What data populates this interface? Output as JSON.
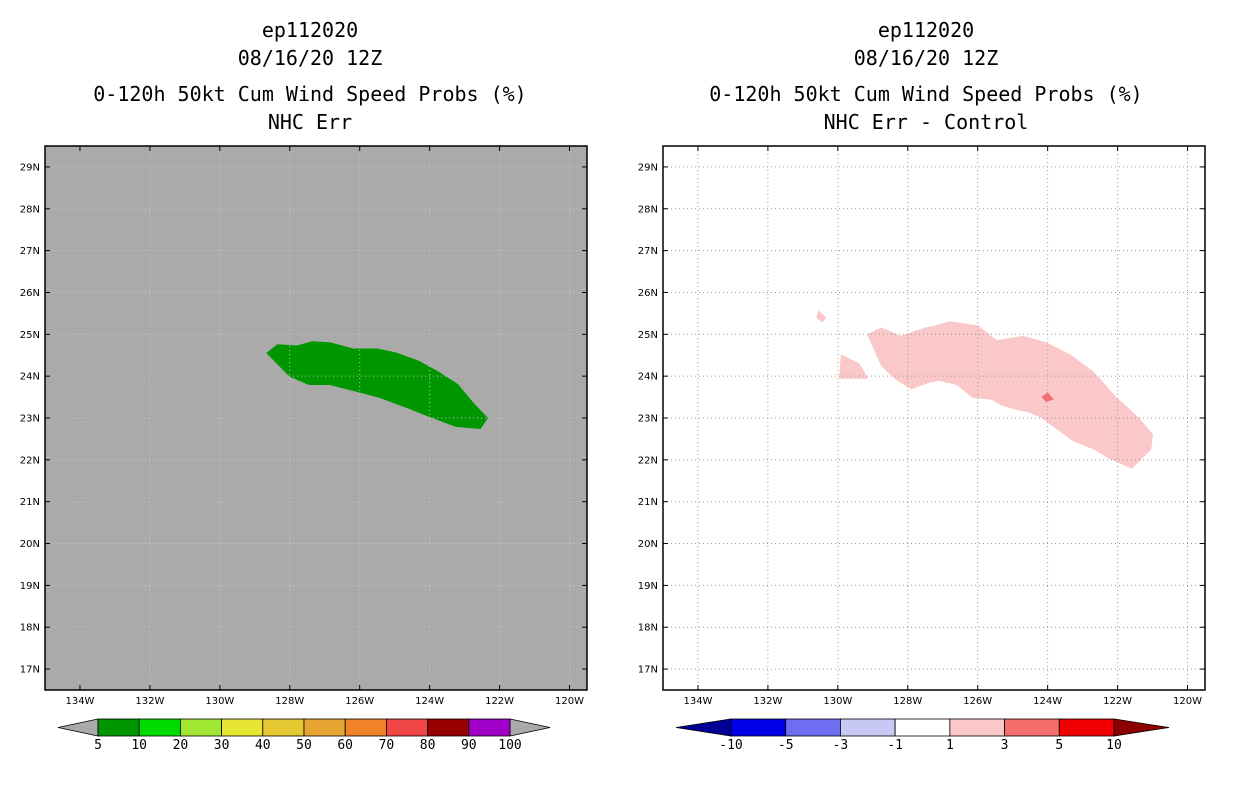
{
  "panels": [
    {
      "title_line1": "ep112020",
      "title_line2": "08/16/20 12Z",
      "title_line3": "0-120h 50kt Cum Wind Speed Probs (%)",
      "title_line4": "NHC Err"
    },
    {
      "title_line1": "ep112020",
      "title_line2": "08/16/20 12Z",
      "title_line3": "0-120h 50kt Cum Wind Speed Probs (%)",
      "title_line4": "NHC Err - Control"
    }
  ],
  "chart_data": [
    {
      "type": "map-contour",
      "title": "0-120h 50kt Cum Wind Speed Probs (%) — NHC Err",
      "background_color": "#aaaaaa",
      "grid": true,
      "xlim": [
        -135,
        -119.5
      ],
      "ylim": [
        16.5,
        29.5
      ],
      "x_ticks": [
        -134,
        -132,
        -130,
        -128,
        -126,
        -124,
        -122,
        -120
      ],
      "x_tick_labels": [
        "134W",
        "132W",
        "130W",
        "128W",
        "126W",
        "124W",
        "122W",
        "120W"
      ],
      "y_ticks": [
        17,
        18,
        19,
        20,
        21,
        22,
        23,
        24,
        25,
        26,
        27,
        28,
        29
      ],
      "y_tick_labels": [
        "17N",
        "18N",
        "19N",
        "20N",
        "21N",
        "22N",
        "23N",
        "24N",
        "25N",
        "26N",
        "27N",
        "28N",
        "29N"
      ],
      "colorbar": {
        "labels": [
          "5",
          "10",
          "20",
          "30",
          "40",
          "50",
          "60",
          "70",
          "80",
          "90",
          "100"
        ],
        "colors": [
          "#009600",
          "#00dc00",
          "#a0e632",
          "#e6e632",
          "#e6c832",
          "#e6a532",
          "#f08228",
          "#f04646",
          "#960000",
          "#a000c8"
        ],
        "under_color": "#aaaaaa",
        "over_color": "#aaaaaa"
      },
      "regions": [
        {
          "name": "5-10% probability",
          "color": "#009600",
          "boundary_lon": [
            -128.65,
            -128.35,
            -127.8,
            -127.35,
            -126.85,
            -126.2,
            -125.5,
            -124.95,
            -124.3,
            -123.75,
            -123.2,
            -122.75,
            -122.35,
            -122.55,
            -123.25,
            -124.05,
            -124.65,
            -125.45,
            -126.15,
            -126.85,
            -127.45,
            -128.0,
            -128.65
          ],
          "boundary_lat": [
            24.55,
            24.75,
            24.72,
            24.82,
            24.8,
            24.65,
            24.65,
            24.55,
            24.35,
            24.1,
            23.8,
            23.35,
            23.0,
            22.75,
            22.8,
            23.05,
            23.25,
            23.5,
            23.65,
            23.8,
            23.8,
            24.0,
            24.55
          ]
        }
      ]
    },
    {
      "type": "map-contour",
      "title": "0-120h 50kt Cum Wind Speed Probs (%) — NHC Err - Control",
      "background_color": "#ffffff",
      "grid": true,
      "xlim": [
        -135,
        -119.5
      ],
      "ylim": [
        16.5,
        29.5
      ],
      "x_ticks": [
        -134,
        -132,
        -130,
        -128,
        -126,
        -124,
        -122,
        -120
      ],
      "x_tick_labels": [
        "134W",
        "132W",
        "130W",
        "128W",
        "126W",
        "124W",
        "122W",
        "120W"
      ],
      "y_ticks": [
        17,
        18,
        19,
        20,
        21,
        22,
        23,
        24,
        25,
        26,
        27,
        28,
        29
      ],
      "y_tick_labels": [
        "17N",
        "18N",
        "19N",
        "20N",
        "21N",
        "22N",
        "23N",
        "24N",
        "25N",
        "26N",
        "27N",
        "28N",
        "29N"
      ],
      "colorbar": {
        "labels": [
          "-10",
          "-5",
          "-3",
          "-1",
          "1",
          "3",
          "5",
          "10"
        ],
        "colors": [
          "#0000e6",
          "#6e6ef0",
          "#c8c8f5",
          "#ffffff",
          "#fac8c8",
          "#f56e6e",
          "#f00000"
        ],
        "under_color": "#000096",
        "over_color": "#8c0000"
      },
      "regions": [
        {
          "name": "1-3% difference (main band)",
          "color": "#fac8c8",
          "boundary_lon": [
            -129.15,
            -128.75,
            -128.2,
            -127.5,
            -127.2,
            -126.8,
            -126.0,
            -125.45,
            -124.7,
            -124.05,
            -123.35,
            -122.7,
            -122.05,
            -121.4,
            -121.0,
            -121.05,
            -121.6,
            -122.25,
            -122.65,
            -123.25,
            -123.75,
            -124.15,
            -124.55,
            -124.85,
            -125.3,
            -125.6,
            -126.15,
            -126.6,
            -127.1,
            -127.4,
            -127.9,
            -128.3,
            -128.75,
            -129.15
          ],
          "boundary_lat": [
            25.0,
            25.15,
            24.95,
            25.15,
            25.2,
            25.3,
            25.2,
            24.85,
            24.95,
            24.8,
            24.5,
            24.1,
            23.5,
            23.0,
            22.6,
            22.25,
            21.8,
            22.05,
            22.25,
            22.45,
            22.75,
            23.0,
            23.15,
            23.2,
            23.3,
            23.45,
            23.5,
            23.8,
            23.9,
            23.85,
            23.7,
            23.9,
            24.25,
            25.0
          ]
        },
        {
          "name": "1-3% difference (small patch near 130W 24N)",
          "color": "#fac8c8",
          "boundary_lon": [
            -129.9,
            -129.4,
            -129.15,
            -129.95,
            -129.9
          ],
          "boundary_lat": [
            24.5,
            24.3,
            23.95,
            23.95,
            24.5
          ]
        },
        {
          "name": "1-3% difference (dot near 130.5W 25.5N)",
          "color": "#fac8c8",
          "boundary_lon": [
            -130.55,
            -130.35,
            -130.45,
            -130.6,
            -130.55
          ],
          "boundary_lat": [
            25.55,
            25.4,
            25.3,
            25.4,
            25.55
          ]
        },
        {
          "name": "3-5% difference",
          "color": "#f56e6e",
          "boundary_lon": [
            -124.0,
            -123.85,
            -124.05,
            -124.15,
            -124.0
          ],
          "boundary_lat": [
            23.6,
            23.45,
            23.4,
            23.5,
            23.6
          ]
        }
      ]
    }
  ]
}
